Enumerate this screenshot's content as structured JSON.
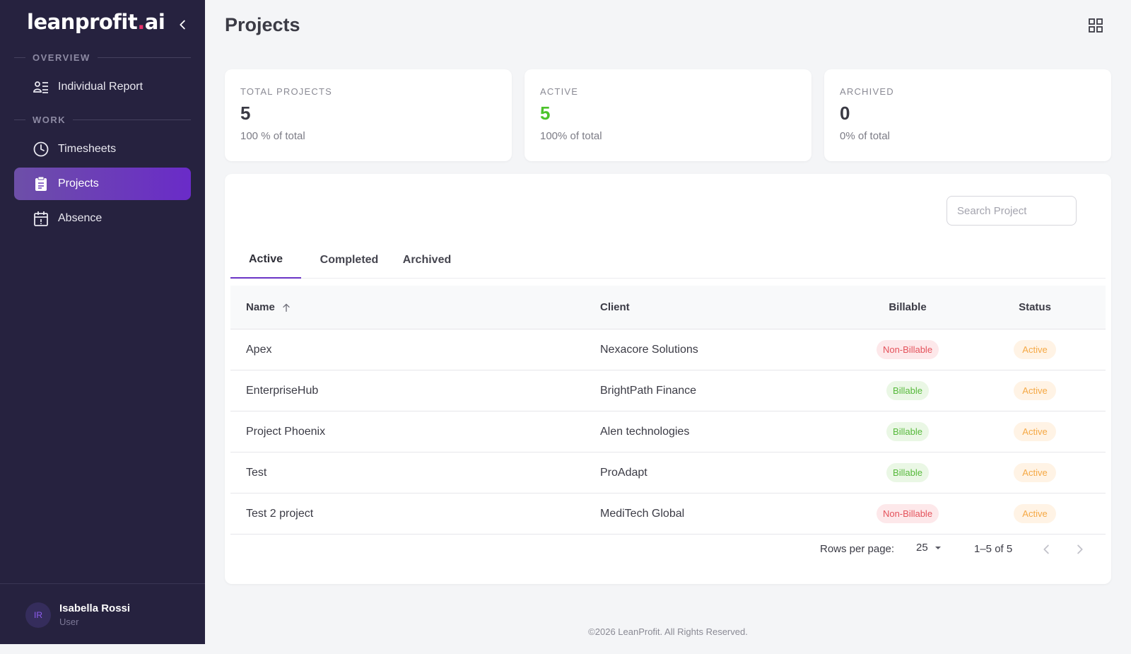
{
  "brand": {
    "name_main": "leanprofit",
    "name_dot": ".",
    "name_tld": "ai"
  },
  "sidebar": {
    "sections": [
      {
        "title": "OVERVIEW"
      },
      {
        "title": "WORK"
      }
    ],
    "items": [
      {
        "label": "Individual Report",
        "icon": "user-list-icon"
      },
      {
        "label": "Timesheets",
        "icon": "clock-icon"
      },
      {
        "label": "Projects",
        "icon": "clipboard-icon",
        "active": true
      },
      {
        "label": "Absence",
        "icon": "calendar-icon"
      }
    ],
    "user": {
      "initials": "IR",
      "name": "Isabella Rossi",
      "role": "User"
    }
  },
  "header": {
    "title": "Projects"
  },
  "stats": [
    {
      "label": "TOTAL PROJECTS",
      "value": "5",
      "sub": "100 % of total"
    },
    {
      "label": "ACTIVE",
      "value": "5",
      "sub": "100% of total",
      "color": "#4cc32b"
    },
    {
      "label": "ARCHIVED",
      "value": "0",
      "sub": "0% of total"
    }
  ],
  "search": {
    "placeholder": "Search Project",
    "value": ""
  },
  "tabs": [
    {
      "label": "Active",
      "active": true
    },
    {
      "label": "Completed"
    },
    {
      "label": "Archived"
    }
  ],
  "table": {
    "columns": [
      "Name",
      "Client",
      "Billable",
      "Status"
    ],
    "rows": [
      {
        "name": "Apex",
        "client": "Nexacore Solutions",
        "billable": "Non-Billable",
        "status": "Active"
      },
      {
        "name": "EnterpriseHub",
        "client": "BrightPath Finance",
        "billable": "Billable",
        "status": "Active"
      },
      {
        "name": "Project Phoenix",
        "client": "Alen technologies",
        "billable": "Billable",
        "status": "Active"
      },
      {
        "name": "Test",
        "client": "ProAdapt",
        "billable": "Billable",
        "status": "Active"
      },
      {
        "name": "Test 2 project",
        "client": "MediTech Global",
        "billable": "Non-Billable",
        "status": "Active"
      }
    ]
  },
  "pagination": {
    "rows_per_page_label": "Rows per page:",
    "rows_per_page": "25",
    "range": "1–5 of 5"
  },
  "footer": {
    "text": "©2026 LeanProfit. All Rights Reserved."
  },
  "colors": {
    "sidebar_bg": "#26223f",
    "accent": "#6a34c6",
    "active_green": "#4cc32b",
    "logo_dot": "#e8306b"
  }
}
